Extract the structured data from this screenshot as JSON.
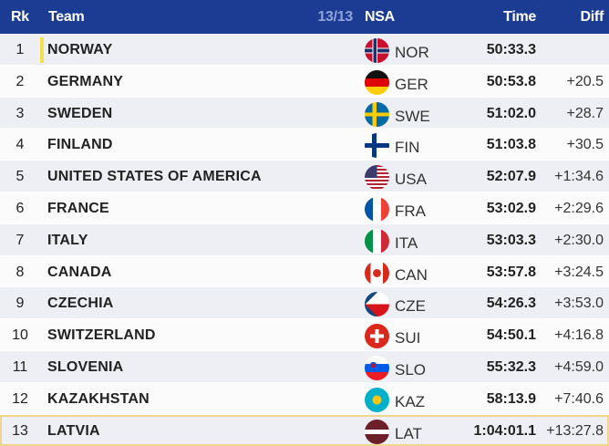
{
  "header": {
    "rk": "Rk",
    "team": "Team",
    "count": "13/13",
    "nsa": "NSA",
    "time": "Time",
    "diff": "Diff"
  },
  "rows": [
    {
      "rk": "1",
      "team": "NORWAY",
      "nsa": "NOR",
      "time": "50:33.3",
      "diff": "",
      "flag": "norway-flag"
    },
    {
      "rk": "2",
      "team": "GERMANY",
      "nsa": "GER",
      "time": "50:53.8",
      "diff": "+20.5",
      "flag": "germany-flag"
    },
    {
      "rk": "3",
      "team": "SWEDEN",
      "nsa": "SWE",
      "time": "51:02.0",
      "diff": "+28.7",
      "flag": "sweden-flag"
    },
    {
      "rk": "4",
      "team": "FINLAND",
      "nsa": "FIN",
      "time": "51:03.8",
      "diff": "+30.5",
      "flag": "finland-flag"
    },
    {
      "rk": "5",
      "team": "UNITED STATES OF AMERICA",
      "nsa": "USA",
      "time": "52:07.9",
      "diff": "+1:34.6",
      "flag": "usa-flag"
    },
    {
      "rk": "6",
      "team": "FRANCE",
      "nsa": "FRA",
      "time": "53:02.9",
      "diff": "+2:29.6",
      "flag": "france-flag"
    },
    {
      "rk": "7",
      "team": "ITALY",
      "nsa": "ITA",
      "time": "53:03.3",
      "diff": "+2:30.0",
      "flag": "italy-flag"
    },
    {
      "rk": "8",
      "team": "CANADA",
      "nsa": "CAN",
      "time": "53:57.8",
      "diff": "+3:24.5",
      "flag": "canada-flag"
    },
    {
      "rk": "9",
      "team": "CZECHIA",
      "nsa": "CZE",
      "time": "54:26.3",
      "diff": "+3:53.0",
      "flag": "czechia-flag"
    },
    {
      "rk": "10",
      "team": "SWITZERLAND",
      "nsa": "SUI",
      "time": "54:50.1",
      "diff": "+4:16.8",
      "flag": "switzerland-flag"
    },
    {
      "rk": "11",
      "team": "SLOVENIA",
      "nsa": "SLO",
      "time": "55:32.3",
      "diff": "+4:59.0",
      "flag": "slovenia-flag"
    },
    {
      "rk": "12",
      "team": "KAZAKHSTAN",
      "nsa": "KAZ",
      "time": "58:13.9",
      "diff": "+7:40.6",
      "flag": "kazakhstan-flag"
    },
    {
      "rk": "13",
      "team": "LATVIA",
      "nsa": "LAT",
      "time": "1:04:01.1",
      "diff": "+13:27.8",
      "flag": "latvia-flag"
    }
  ],
  "colors": {
    "header": "#1c3c94",
    "count": "#8fa3dc",
    "leader_marker": "#f5e04a",
    "highlight_border": "#f0d58c"
  }
}
